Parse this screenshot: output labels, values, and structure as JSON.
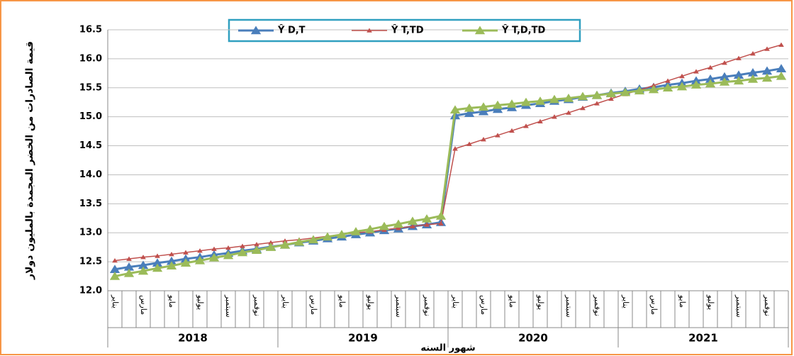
{
  "chart_data": {
    "type": "line",
    "y_label": "قيمة الصادرات من الخضر المجمدة بالمليون دولار",
    "x_label": "شهور السنه",
    "categories": [
      "يناير",
      null,
      "مارس",
      null,
      "مايو",
      null,
      "يوليو",
      null,
      "سبتمبر",
      null,
      "نوفمبر",
      null,
      "يناير",
      null,
      "مارس",
      null,
      "مايو",
      null,
      "يوليو",
      null,
      "سبتمبر",
      null,
      "نوفمبر",
      null,
      "يناير",
      null,
      "مارس",
      null,
      "مايو",
      null,
      "يوليو",
      null,
      "سبتمبر",
      null,
      "نوفمبر",
      null,
      "يناير",
      null,
      "مارس",
      null,
      "مايو",
      null,
      "يوليو",
      null,
      "سبتمبر",
      null,
      "نوفمبر",
      null
    ],
    "x_groups": [
      "2018",
      "2019",
      "2020",
      "2021"
    ],
    "ylim": [
      12,
      16.5
    ],
    "yticks": [
      {
        "value": 12,
        "label": "12.0"
      },
      12.5,
      {
        "value": 13,
        "label": "13.0"
      },
      13.5,
      {
        "value": 14,
        "label": "14.0"
      },
      14.5,
      {
        "value": 15,
        "label": "15.0"
      },
      15.5,
      {
        "value": 16,
        "label": "16.0"
      },
      16.5
    ],
    "grid": true,
    "legend": "top",
    "series": [
      {
        "name": "Ŷ D,T",
        "color": "#4a7ebb",
        "values": [
          12.37,
          12.41,
          12.44,
          12.48,
          12.51,
          12.55,
          12.58,
          12.62,
          12.65,
          12.69,
          12.72,
          12.76,
          12.79,
          12.83,
          12.86,
          12.9,
          12.93,
          12.97,
          13.0,
          13.04,
          13.07,
          13.11,
          13.14,
          13.18,
          15.02,
          15.06,
          15.09,
          15.13,
          15.16,
          15.2,
          15.23,
          15.27,
          15.3,
          15.34,
          15.37,
          15.41,
          15.44,
          15.48,
          15.51,
          15.55,
          15.58,
          15.62,
          15.65,
          15.69,
          15.72,
          15.76,
          15.79,
          15.83
        ]
      },
      {
        "name": "Ŷ T,TD",
        "color": "#c0504d",
        "values": [
          12.52,
          12.55,
          12.58,
          12.6,
          12.63,
          12.66,
          12.69,
          12.72,
          12.74,
          12.77,
          12.8,
          12.83,
          12.86,
          12.88,
          12.91,
          12.94,
          12.97,
          13.0,
          13.02,
          13.05,
          13.08,
          13.11,
          13.14,
          13.16,
          14.45,
          14.53,
          14.61,
          14.68,
          14.76,
          14.84,
          14.92,
          15.0,
          15.07,
          15.15,
          15.23,
          15.31,
          15.39,
          15.46,
          15.54,
          15.62,
          15.7,
          15.78,
          15.85,
          15.93,
          16.01,
          16.09,
          16.17,
          16.24
        ]
      },
      {
        "name": "Ŷ T,D,TD",
        "color": "#9bbb59",
        "values": [
          12.25,
          12.3,
          12.34,
          12.39,
          12.43,
          12.48,
          12.52,
          12.57,
          12.61,
          12.66,
          12.7,
          12.75,
          12.79,
          12.84,
          12.88,
          12.93,
          12.97,
          13.02,
          13.06,
          13.11,
          13.15,
          13.2,
          13.24,
          13.29,
          15.12,
          15.15,
          15.17,
          15.2,
          15.22,
          15.25,
          15.27,
          15.3,
          15.32,
          15.35,
          15.37,
          15.4,
          15.42,
          15.45,
          15.47,
          15.5,
          15.52,
          15.55,
          15.57,
          15.6,
          15.62,
          15.65,
          15.67,
          15.7
        ]
      }
    ]
  }
}
